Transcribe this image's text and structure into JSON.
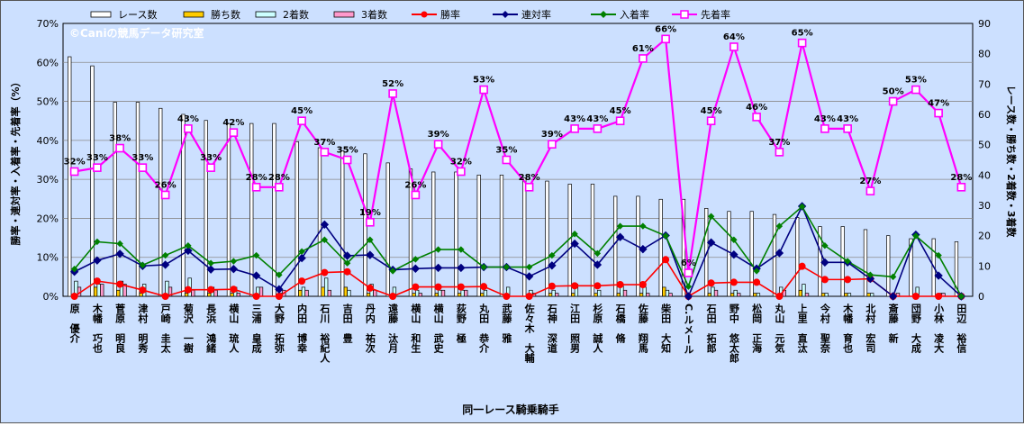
{
  "chart_data": {
    "type": "bar",
    "title": "",
    "watermark": "©Caniの競馬データ研究室",
    "xlabel": "同一レース騎乗騎手",
    "ylabel_left": "勝率・連対率・入着率・先着率（%）",
    "ylabel_right": "レース数・勝ち数・2着数・3着数",
    "ylim_left": [
      0,
      70
    ],
    "ylim_right": [
      0,
      90
    ],
    "left_ticks": [
      "0%",
      "10%",
      "20%",
      "30%",
      "40%",
      "50%",
      "60%",
      "70%"
    ],
    "right_ticks": [
      "0",
      "10",
      "20",
      "30",
      "40",
      "50",
      "60",
      "70",
      "80",
      "90"
    ],
    "legend_position": "top",
    "categories": [
      "原　優介",
      "木幡　巧也",
      "菅原　明良",
      "津村　明秀",
      "戸崎　圭太",
      "菊沢　一樹",
      "長浜　鴻緒",
      "横山　琉人",
      "三浦　皇成",
      "大野　拓弥",
      "内田　博幸",
      "石川　裕紀人",
      "吉田　豊",
      "丹内　祐次",
      "遠藤　汰月",
      "横山　和生",
      "横山　武史",
      "荻野　極",
      "丸田　恭介",
      "武藤　雅",
      "佐々木　大輔",
      "石神　深道",
      "江田　照男",
      "杉原　誠人",
      "石橋　脩",
      "佐藤　翔馬",
      "柴田　大知",
      "C.ルメール",
      "石田　拓郎",
      "野中　悠太郎",
      "松岡　正海",
      "丸山　元気",
      "上里　直汰",
      "今村　聖奈",
      "木幡　育也",
      "北村　宏司",
      "斎藤　新",
      "団野　大成",
      "小林　凌大",
      "田辺　裕信"
    ],
    "series": [
      {
        "name": "レース数",
        "axis": "right",
        "kind": "bar",
        "color": "#ffffff",
        "values": [
          79,
          76,
          64,
          64,
          62,
          60,
          58,
          57,
          57,
          57,
          51,
          49,
          48,
          47,
          44,
          42,
          41,
          41,
          40,
          40,
          39,
          38,
          37,
          37,
          33,
          33,
          32,
          32,
          29,
          28,
          28,
          27,
          26,
          23,
          23,
          22,
          20,
          19,
          19,
          18
        ]
      },
      {
        "name": "勝ち数",
        "axis": "right",
        "kind": "bar",
        "color": "#ffcc00",
        "values": [
          0,
          3,
          2,
          1,
          0,
          1,
          1,
          1,
          0,
          0,
          2,
          3,
          3,
          1,
          0,
          1,
          1,
          1,
          1,
          0,
          0,
          1,
          1,
          1,
          1,
          1,
          3,
          0,
          1,
          1,
          1,
          0,
          2,
          1,
          1,
          1,
          0,
          0,
          0,
          0
        ]
      },
      {
        "name": "2着数",
        "axis": "right",
        "kind": "bar",
        "color": "#ccffff",
        "values": [
          5,
          4,
          5,
          4,
          5,
          6,
          3,
          3,
          3,
          1,
          3,
          6,
          2,
          4,
          3,
          2,
          2,
          2,
          2,
          3,
          2,
          2,
          4,
          2,
          4,
          3,
          2,
          0,
          3,
          2,
          1,
          3,
          4,
          1,
          1,
          1,
          0,
          3,
          1,
          0
        ]
      },
      {
        "name": "3着数",
        "axis": "right",
        "kind": "bar",
        "color": "#ff99cc",
        "values": [
          3,
          4,
          4,
          0,
          3,
          2,
          2,
          1,
          3,
          2,
          2,
          2,
          0,
          2,
          0,
          1,
          2,
          2,
          0,
          0,
          1,
          1,
          0,
          0,
          2,
          1,
          1,
          0,
          2,
          1,
          0,
          2,
          1,
          0,
          0,
          0,
          1,
          0,
          1,
          0
        ]
      },
      {
        "name": "勝率",
        "axis": "left",
        "kind": "line",
        "color": "#ff0000",
        "marker": "circle",
        "values": [
          0.0,
          3.9,
          3.1,
          1.6,
          0.0,
          1.7,
          1.7,
          1.8,
          0.0,
          0.0,
          3.9,
          6.1,
          6.3,
          2.1,
          0.0,
          2.4,
          2.4,
          2.4,
          2.5,
          0.0,
          0.0,
          2.6,
          2.7,
          2.7,
          3.0,
          3.0,
          9.4,
          0.0,
          3.4,
          3.6,
          3.6,
          0.0,
          7.7,
          4.3,
          4.3,
          4.5,
          0.0,
          0.0,
          0.0,
          0.0
        ]
      },
      {
        "name": "連対率",
        "axis": "left",
        "kind": "line",
        "color": "#000080",
        "marker": "diamond",
        "values": [
          6.3,
          9.2,
          10.9,
          7.8,
          8.1,
          11.7,
          6.9,
          7.0,
          5.3,
          1.8,
          9.8,
          18.4,
          10.4,
          10.6,
          6.8,
          7.1,
          7.3,
          7.3,
          7.5,
          7.5,
          5.1,
          7.9,
          13.5,
          8.1,
          15.2,
          12.1,
          15.6,
          0.0,
          13.8,
          10.7,
          7.1,
          11.1,
          23.1,
          8.7,
          8.7,
          4.5,
          0.0,
          15.8,
          5.3,
          0.0
        ]
      },
      {
        "name": "入着率",
        "axis": "left",
        "kind": "line",
        "color": "#008000",
        "marker": "diamond",
        "values": [
          7.0,
          14.0,
          13.5,
          8.0,
          10.5,
          13.0,
          8.5,
          9.0,
          10.5,
          5.5,
          11.5,
          14.5,
          8.5,
          14.5,
          6.5,
          9.5,
          12.0,
          12.0,
          7.5,
          7.5,
          7.5,
          10.5,
          16.0,
          11.0,
          18.0,
          18.0,
          15.5,
          2.5,
          20.5,
          14.5,
          6.5,
          18.0,
          23.0,
          13.0,
          9.0,
          5.5,
          5.0,
          15.5,
          10.5,
          0.0
        ]
      },
      {
        "name": "先着率",
        "axis": "left",
        "kind": "line",
        "color": "#ff00ff",
        "marker": "square",
        "values": [
          32,
          33,
          38,
          33,
          26,
          43,
          33,
          42,
          28,
          28,
          45,
          37,
          35,
          19,
          52,
          26,
          39,
          32,
          53,
          35,
          28,
          39,
          43,
          43,
          45,
          61,
          66,
          6,
          45,
          64,
          46,
          37,
          65,
          43,
          43,
          27,
          50,
          53,
          47,
          28
        ]
      }
    ],
    "data_labels": [
      "32%",
      "33%",
      "38%",
      "33%",
      "26%",
      "43%",
      "33%",
      "42%",
      "28%",
      "28%",
      "45%",
      "37%",
      "35%",
      "19%",
      "52%",
      "26%",
      "39%",
      "32%",
      "53%",
      "35%",
      "28%",
      "39%",
      "43%",
      "43%",
      "45%",
      "61%",
      "66%",
      "6%",
      "45%",
      "64%",
      "46%",
      "37%",
      "65%",
      "43%",
      "43%",
      "27%",
      "50%",
      "53%",
      "47%",
      "28%"
    ]
  }
}
